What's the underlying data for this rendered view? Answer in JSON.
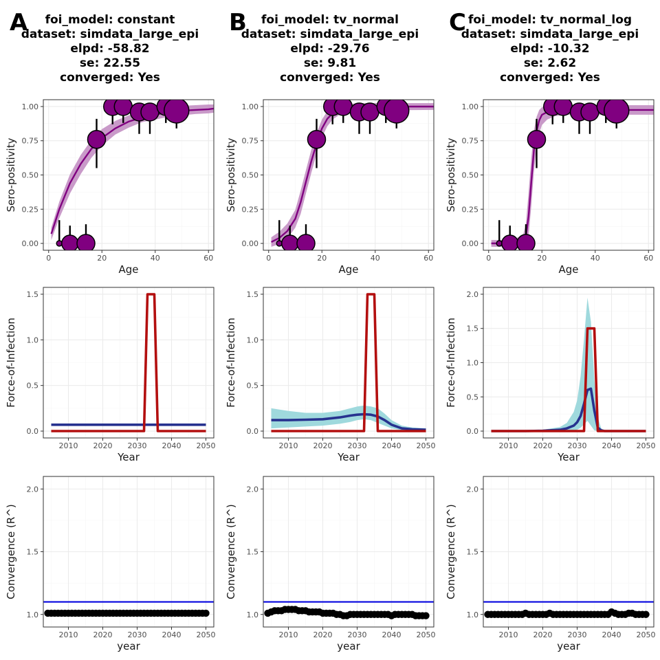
{
  "colors": {
    "grid_major": "#ebebeb",
    "grid_minor": "#f5f5f5",
    "panel_border": "#333333",
    "purple": "#800080",
    "purple_ribbon": "#c38fc3",
    "foi_true_red": "#b30f0f",
    "foi_est_blue": "#27328f",
    "foi_ribbon_cyan": "#9fd9dd",
    "rhat_line_blue": "#1010e0",
    "rhat_points": "#000000"
  },
  "columns": [
    {
      "letter": "A",
      "title": [
        "foi_model: constant",
        "dataset: simdata_large_epi",
        "elpd: -58.82",
        "se: 22.55",
        "converged: Yes"
      ]
    },
    {
      "letter": "B",
      "title": [
        "foi_model: tv_normal",
        "dataset: simdata_large_epi",
        "elpd: -29.76",
        "se: 9.81",
        "converged: Yes"
      ]
    },
    {
      "letter": "C",
      "title": [
        "foi_model: tv_normal_log",
        "dataset: simdata_large_epi",
        "elpd: -10.32",
        "se: 2.62",
        "converged: Yes"
      ]
    }
  ],
  "chart_data": [
    {
      "panel": "A-seroprevalence",
      "type": "scatter",
      "xlabel": "Age",
      "ylabel": "Sero-positivity",
      "xlim": [
        -2,
        62
      ],
      "ylim": [
        -0.05,
        1.05
      ],
      "xticks": [
        0,
        20,
        40,
        60
      ],
      "yticks": [
        0,
        0.25,
        0.5,
        0.75,
        1
      ],
      "ytick_labels": [
        "0.00",
        "0.25",
        "0.50",
        "0.75",
        "1.00"
      ],
      "points": [
        {
          "age": 4,
          "prev": 0.0,
          "lo": 0.0,
          "hi": 0.17,
          "size": 4
        },
        {
          "age": 8,
          "prev": 0.0,
          "lo": 0.0,
          "hi": 0.13,
          "size": 12
        },
        {
          "age": 14,
          "prev": 0.0,
          "lo": 0.0,
          "hi": 0.14,
          "size": 13
        },
        {
          "age": 18,
          "prev": 0.76,
          "lo": 0.55,
          "hi": 0.91,
          "size": 13
        },
        {
          "age": 24,
          "prev": 1.0,
          "lo": 0.87,
          "hi": 1.0,
          "size": 13
        },
        {
          "age": 28,
          "prev": 1.0,
          "lo": 0.88,
          "hi": 1.0,
          "size": 13
        },
        {
          "age": 34,
          "prev": 0.96,
          "lo": 0.8,
          "hi": 0.99,
          "size": 13
        },
        {
          "age": 38,
          "prev": 0.96,
          "lo": 0.8,
          "hi": 0.99,
          "size": 13
        },
        {
          "age": 44,
          "prev": 1.0,
          "lo": 0.88,
          "hi": 1.0,
          "size": 13
        },
        {
          "age": 48,
          "prev": 0.97,
          "lo": 0.84,
          "hi": 1.0,
          "size": 18
        }
      ],
      "fit": {
        "x": [
          1,
          4,
          8,
          12,
          16,
          20,
          25,
          30,
          35,
          40,
          45,
          50,
          55,
          60,
          62
        ],
        "y": [
          0.07,
          0.25,
          0.44,
          0.58,
          0.69,
          0.77,
          0.84,
          0.89,
          0.92,
          0.94,
          0.96,
          0.97,
          0.975,
          0.98,
          0.985
        ],
        "lo": [
          0.05,
          0.21,
          0.39,
          0.53,
          0.65,
          0.74,
          0.82,
          0.87,
          0.91,
          0.93,
          0.95,
          0.96,
          0.97,
          0.975,
          0.98
        ],
        "hi": [
          0.09,
          0.28,
          0.48,
          0.62,
          0.73,
          0.81,
          0.87,
          0.91,
          0.94,
          0.96,
          0.97,
          0.98,
          0.985,
          0.99,
          0.99
        ]
      }
    },
    {
      "panel": "B-seroprevalence",
      "type": "scatter",
      "xlabel": "Age",
      "ylabel": "Sero-positivity",
      "xlim": [
        -2,
        62
      ],
      "ylim": [
        -0.05,
        1.05
      ],
      "xticks": [
        0,
        20,
        40,
        60
      ],
      "yticks": [
        0,
        0.25,
        0.5,
        0.75,
        1
      ],
      "ytick_labels": [
        "0.00",
        "0.25",
        "0.50",
        "0.75",
        "1.00"
      ],
      "points": [
        {
          "age": 4,
          "prev": 0.0,
          "lo": 0.0,
          "hi": 0.17,
          "size": 4
        },
        {
          "age": 8,
          "prev": 0.0,
          "lo": 0.0,
          "hi": 0.13,
          "size": 12
        },
        {
          "age": 14,
          "prev": 0.0,
          "lo": 0.0,
          "hi": 0.14,
          "size": 13
        },
        {
          "age": 18,
          "prev": 0.76,
          "lo": 0.55,
          "hi": 0.91,
          "size": 13
        },
        {
          "age": 24,
          "prev": 1.0,
          "lo": 0.87,
          "hi": 1.0,
          "size": 13
        },
        {
          "age": 28,
          "prev": 1.0,
          "lo": 0.88,
          "hi": 1.0,
          "size": 13
        },
        {
          "age": 34,
          "prev": 0.96,
          "lo": 0.8,
          "hi": 0.99,
          "size": 13
        },
        {
          "age": 38,
          "prev": 0.96,
          "lo": 0.8,
          "hi": 0.99,
          "size": 13
        },
        {
          "age": 44,
          "prev": 1.0,
          "lo": 0.88,
          "hi": 1.0,
          "size": 13
        },
        {
          "age": 48,
          "prev": 0.97,
          "lo": 0.84,
          "hi": 1.0,
          "size": 18
        }
      ],
      "fit": {
        "x": [
          1,
          4,
          7,
          10,
          12,
          14,
          16,
          18,
          20,
          22,
          24,
          27,
          30,
          35,
          40,
          50,
          62
        ],
        "y": [
          0.01,
          0.04,
          0.09,
          0.18,
          0.3,
          0.45,
          0.6,
          0.73,
          0.84,
          0.91,
          0.95,
          0.98,
          0.99,
          0.995,
          1.0,
          1.0,
          1.0
        ],
        "lo": [
          0.0,
          0.02,
          0.06,
          0.14,
          0.24,
          0.39,
          0.54,
          0.68,
          0.8,
          0.88,
          0.93,
          0.97,
          0.985,
          0.99,
          0.995,
          0.998,
          1.0
        ],
        "hi": [
          0.02,
          0.06,
          0.12,
          0.22,
          0.36,
          0.51,
          0.66,
          0.78,
          0.88,
          0.94,
          0.97,
          0.99,
          0.995,
          1.0,
          1.0,
          1.0,
          1.0
        ]
      }
    },
    {
      "panel": "C-seroprevalence",
      "type": "scatter",
      "xlabel": "Age",
      "ylabel": "Sero-positivity",
      "xlim": [
        -2,
        62
      ],
      "ylim": [
        -0.05,
        1.05
      ],
      "xticks": [
        0,
        20,
        40,
        60
      ],
      "yticks": [
        0,
        0.25,
        0.5,
        0.75,
        1
      ],
      "ytick_labels": [
        "0.00",
        "0.25",
        "0.50",
        "0.75",
        "1.00"
      ],
      "points": [
        {
          "age": 4,
          "prev": 0.0,
          "lo": 0.0,
          "hi": 0.17,
          "size": 4
        },
        {
          "age": 8,
          "prev": 0.0,
          "lo": 0.0,
          "hi": 0.13,
          "size": 12
        },
        {
          "age": 14,
          "prev": 0.0,
          "lo": 0.0,
          "hi": 0.14,
          "size": 13
        },
        {
          "age": 18,
          "prev": 0.76,
          "lo": 0.55,
          "hi": 0.91,
          "size": 13
        },
        {
          "age": 24,
          "prev": 1.0,
          "lo": 0.87,
          "hi": 1.0,
          "size": 13
        },
        {
          "age": 28,
          "prev": 1.0,
          "lo": 0.88,
          "hi": 1.0,
          "size": 13
        },
        {
          "age": 34,
          "prev": 0.96,
          "lo": 0.8,
          "hi": 0.99,
          "size": 13
        },
        {
          "age": 38,
          "prev": 0.96,
          "lo": 0.8,
          "hi": 0.99,
          "size": 13
        },
        {
          "age": 44,
          "prev": 1.0,
          "lo": 0.88,
          "hi": 1.0,
          "size": 13
        },
        {
          "age": 48,
          "prev": 0.97,
          "lo": 0.84,
          "hi": 1.0,
          "size": 18
        }
      ],
      "fit": {
        "x": [
          1,
          5,
          10,
          13,
          14,
          15,
          16,
          17,
          18,
          19,
          20,
          22,
          25,
          30,
          40,
          62
        ],
        "y": [
          0.0,
          0.0,
          0.0,
          0.01,
          0.05,
          0.2,
          0.45,
          0.68,
          0.82,
          0.9,
          0.94,
          0.96,
          0.97,
          0.975,
          0.975,
          0.975
        ],
        "lo": [
          0.0,
          0.0,
          0.0,
          0.0,
          0.01,
          0.08,
          0.3,
          0.55,
          0.72,
          0.83,
          0.89,
          0.93,
          0.955,
          0.965,
          0.965,
          0.965
        ],
        "hi": [
          0.0,
          0.0,
          0.01,
          0.04,
          0.12,
          0.35,
          0.6,
          0.8,
          0.9,
          0.95,
          0.97,
          0.98,
          0.985,
          0.985,
          0.985,
          0.985
        ]
      }
    },
    {
      "panel": "A-foi",
      "type": "line",
      "xlabel": "Year",
      "ylabel": "Force-of-Infection",
      "xlim": [
        2002.7,
        2052.3
      ],
      "ylim": [
        -0.075,
        1.575
      ],
      "xticks": [
        2010,
        2020,
        2030,
        2040,
        2050
      ],
      "yticks": [
        0,
        0.5,
        1,
        1.5
      ],
      "ytick_labels": [
        "0.0",
        "0.5",
        "1.0",
        "1.5"
      ],
      "estimate": {
        "x": [
          2005,
          2050
        ],
        "y": [
          0.07,
          0.07
        ],
        "lo": [
          0.065,
          0.065
        ],
        "hi": [
          0.075,
          0.075
        ]
      },
      "true_foi": {
        "x": [
          2005,
          2032,
          2033,
          2035,
          2036,
          2050
        ],
        "y": [
          0,
          0,
          1.5,
          1.5,
          0,
          0
        ]
      }
    },
    {
      "panel": "B-foi",
      "type": "line",
      "xlabel": "Year",
      "ylabel": "Force-of-Infection",
      "xlim": [
        2002.7,
        2052.3
      ],
      "ylim": [
        -0.075,
        1.575
      ],
      "xticks": [
        2010,
        2020,
        2030,
        2040,
        2050
      ],
      "yticks": [
        0,
        0.5,
        1,
        1.5
      ],
      "ytick_labels": [
        "0.0",
        "0.5",
        "1.0",
        "1.5"
      ],
      "estimate": {
        "x": [
          2005,
          2010,
          2015,
          2020,
          2025,
          2028,
          2030,
          2032,
          2034,
          2036,
          2038,
          2040,
          2043,
          2046,
          2050
        ],
        "y": [
          0.12,
          0.12,
          0.125,
          0.13,
          0.15,
          0.17,
          0.18,
          0.185,
          0.18,
          0.16,
          0.12,
          0.07,
          0.03,
          0.02,
          0.015
        ],
        "lo": [
          0.03,
          0.04,
          0.05,
          0.06,
          0.08,
          0.1,
          0.12,
          0.13,
          0.12,
          0.09,
          0.06,
          0.03,
          0.01,
          0.005,
          0.0
        ],
        "hi": [
          0.25,
          0.22,
          0.2,
          0.2,
          0.22,
          0.25,
          0.27,
          0.28,
          0.27,
          0.25,
          0.19,
          0.12,
          0.06,
          0.04,
          0.03
        ]
      },
      "true_foi": {
        "x": [
          2005,
          2032,
          2033,
          2035,
          2036,
          2050
        ],
        "y": [
          0,
          0,
          1.5,
          1.5,
          0,
          0
        ]
      }
    },
    {
      "panel": "C-foi",
      "type": "line",
      "xlabel": "Year",
      "ylabel": "Force-of-Infection",
      "xlim": [
        2002.7,
        2052.3
      ],
      "ylim": [
        -0.1,
        2.1
      ],
      "xticks": [
        2010,
        2020,
        2030,
        2040,
        2050
      ],
      "yticks": [
        0,
        0.5,
        1,
        1.5,
        2
      ],
      "ytick_labels": [
        "0.0",
        "0.5",
        "1.0",
        "1.5",
        "2.0"
      ],
      "estimate": {
        "x": [
          2005,
          2015,
          2020,
          2025,
          2027,
          2029,
          2030,
          2031,
          2032,
          2033,
          2034,
          2035,
          2036,
          2037,
          2038,
          2040,
          2050
        ],
        "y": [
          0,
          0,
          0.005,
          0.02,
          0.04,
          0.08,
          0.13,
          0.22,
          0.4,
          0.6,
          0.62,
          0.3,
          0.05,
          0.01,
          0.0,
          0,
          0
        ],
        "lo": [
          0,
          0,
          0,
          0.0,
          0.0,
          0.01,
          0.02,
          0.05,
          0.1,
          0.15,
          0.08,
          0.01,
          0.0,
          0.0,
          0,
          0,
          0
        ],
        "hi": [
          0,
          0.005,
          0.02,
          0.06,
          0.12,
          0.28,
          0.45,
          0.8,
          1.35,
          1.95,
          1.6,
          0.75,
          0.2,
          0.04,
          0.01,
          0,
          0
        ]
      },
      "true_foi": {
        "x": [
          2005,
          2032,
          2033,
          2035,
          2036,
          2050
        ],
        "y": [
          0,
          0,
          1.5,
          1.5,
          0,
          0
        ]
      }
    },
    {
      "panel": "A-rhat",
      "type": "scatter",
      "xlabel": "year",
      "ylabel": "Convergence (R^)",
      "xlim": [
        2002.7,
        2052.3
      ],
      "ylim": [
        0.9,
        2.1
      ],
      "xticks": [
        2010,
        2020,
        2030,
        2040,
        2050
      ],
      "yticks": [
        1,
        1.5,
        2
      ],
      "ytick_labels": [
        "1.0",
        "1.5",
        "2.0"
      ],
      "threshold": 1.1,
      "x_start": 2004,
      "x_end": 2050,
      "rhat": [
        1.01,
        1.01,
        1.01,
        1.01,
        1.01,
        1.01,
        1.01,
        1.01,
        1.01,
        1.01,
        1.01,
        1.01,
        1.01,
        1.01,
        1.01,
        1.01,
        1.01,
        1.01,
        1.01,
        1.01,
        1.01,
        1.01,
        1.01,
        1.01,
        1.01,
        1.01,
        1.01,
        1.01,
        1.01,
        1.01,
        1.01,
        1.01,
        1.01,
        1.01,
        1.01,
        1.01,
        1.01,
        1.01,
        1.01,
        1.01,
        1.01,
        1.01,
        1.01,
        1.01,
        1.01,
        1.01,
        1.01
      ]
    },
    {
      "panel": "B-rhat",
      "type": "scatter",
      "xlabel": "year",
      "ylabel": "Convergence (R^)",
      "xlim": [
        2002.7,
        2052.3
      ],
      "ylim": [
        0.9,
        2.1
      ],
      "xticks": [
        2010,
        2020,
        2030,
        2040,
        2050
      ],
      "yticks": [
        1,
        1.5,
        2
      ],
      "ytick_labels": [
        "1.0",
        "1.5",
        "2.0"
      ],
      "threshold": 1.1,
      "x_start": 2004,
      "x_end": 2050,
      "rhat": [
        1.01,
        1.02,
        1.03,
        1.03,
        1.03,
        1.04,
        1.04,
        1.04,
        1.04,
        1.03,
        1.03,
        1.03,
        1.02,
        1.02,
        1.02,
        1.02,
        1.01,
        1.01,
        1.01,
        1.01,
        1.0,
        1.0,
        0.99,
        0.99,
        1.0,
        1.0,
        1.0,
        1.0,
        1.0,
        1.0,
        1.0,
        1.0,
        1.0,
        1.0,
        1.0,
        1.0,
        0.99,
        1.0,
        1.0,
        1.0,
        1.0,
        1.0,
        1.0,
        0.99,
        0.99,
        0.99,
        0.99
      ]
    },
    {
      "panel": "C-rhat",
      "type": "scatter",
      "xlabel": "year",
      "ylabel": "Convergence (R^)",
      "xlim": [
        2002.7,
        2052.3
      ],
      "ylim": [
        0.9,
        2.1
      ],
      "xticks": [
        2010,
        2020,
        2030,
        2040,
        2050
      ],
      "yticks": [
        1,
        1.5,
        2
      ],
      "ytick_labels": [
        "1.0",
        "1.5",
        "2.0"
      ],
      "threshold": 1.1,
      "x_start": 2004,
      "x_end": 2050,
      "rhat": [
        1.0,
        1.0,
        1.0,
        1.0,
        1.0,
        1.0,
        1.0,
        1.0,
        1.0,
        1.0,
        1.0,
        1.01,
        1.0,
        1.0,
        1.0,
        1.0,
        1.0,
        1.0,
        1.01,
        1.0,
        1.0,
        1.0,
        1.0,
        1.0,
        1.0,
        1.0,
        1.0,
        1.0,
        1.0,
        1.0,
        1.0,
        1.0,
        1.0,
        1.0,
        1.0,
        1.0,
        1.02,
        1.01,
        1.0,
        1.0,
        1.0,
        1.01,
        1.01,
        1.0,
        1.0,
        1.0,
        1.0
      ]
    }
  ]
}
